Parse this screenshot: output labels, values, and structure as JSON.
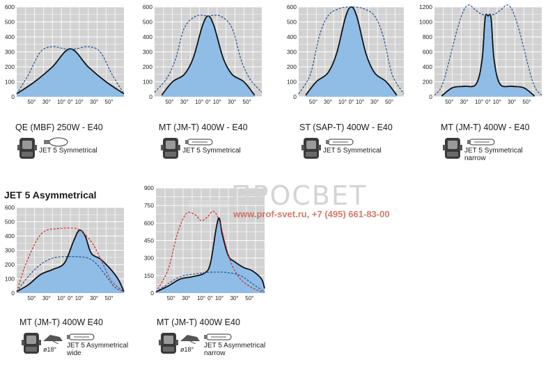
{
  "section_heading": "JET 5 Asymmetrical",
  "watermark": {
    "title": "ПРОСВЕТ",
    "url": "www.prof-svet.ru, +7 (495) 661-83-00"
  },
  "colors": {
    "plot_bg": "#d2d2d2",
    "grid": "#ffffff",
    "fill": "#8fbde6",
    "solid": "#111111",
    "blue_dash": "#1d4f8f",
    "red_dash": "#cc2a2a"
  },
  "chart_data": [
    {
      "type": "line",
      "caption": "QE (MBF) 250W - E40",
      "lamp_label": "JET 5 Symmetrical",
      "lamp_icon": "ellipsoidal-lamp-icon",
      "fixture_icon": "fixture-front-icon",
      "ylim": [
        0,
        600
      ],
      "yticks": [
        0,
        100,
        200,
        300,
        400,
        500,
        600
      ],
      "xticks": [
        "50°",
        "30°",
        "10°",
        "0°",
        "10°",
        "30°",
        "50°"
      ],
      "series": [
        {
          "style": "solid-fill",
          "x": [
            -90,
            -60,
            -30,
            0,
            30,
            60,
            90
          ],
          "y": [
            20,
            100,
            200,
            320,
            200,
            100,
            20
          ]
        },
        {
          "style": "blue-dash",
          "x": [
            -90,
            -70,
            -50,
            -30,
            -10,
            0,
            10,
            30,
            50,
            70,
            90
          ],
          "y": [
            20,
            150,
            300,
            335,
            320,
            320,
            320,
            335,
            300,
            150,
            20
          ]
        }
      ]
    },
    {
      "type": "line",
      "caption": "MT (JM-T) 400W - E40",
      "lamp_label": "JET 5 Symmetrical",
      "lamp_icon": "tubular-lamp-icon",
      "fixture_icon": "fixture-front-icon",
      "ylim": [
        0,
        600
      ],
      "yticks": [
        0,
        100,
        200,
        300,
        400,
        500,
        600
      ],
      "xticks": [
        "50°",
        "30°",
        "10°",
        "0°",
        "10°",
        "30°",
        "50°"
      ],
      "series": [
        {
          "style": "solid-fill",
          "x": [
            -78,
            -60,
            -40,
            -25,
            -10,
            0,
            10,
            25,
            40,
            60,
            78
          ],
          "y": [
            10,
            100,
            150,
            260,
            470,
            540,
            470,
            260,
            150,
            100,
            10
          ]
        },
        {
          "style": "blue-dash",
          "x": [
            -90,
            -70,
            -55,
            -40,
            -20,
            0,
            20,
            40,
            55,
            70,
            90
          ],
          "y": [
            30,
            120,
            250,
            460,
            540,
            540,
            540,
            460,
            250,
            120,
            30
          ]
        }
      ]
    },
    {
      "type": "line",
      "caption": "ST (SAP-T) 400W - E40",
      "lamp_label": "JET 5 Symmetrical",
      "lamp_icon": "tubular-lamp-icon",
      "fixture_icon": "fixture-front-icon",
      "ylim": [
        0,
        600
      ],
      "yticks": [
        0,
        100,
        200,
        300,
        400,
        500,
        600
      ],
      "xticks": [
        "50°",
        "30°",
        "10°",
        "0°",
        "10°",
        "30°",
        "50°"
      ],
      "series": [
        {
          "style": "solid-fill",
          "x": [
            -78,
            -60,
            -40,
            -25,
            -10,
            0,
            10,
            25,
            40,
            60,
            78
          ],
          "y": [
            10,
            100,
            160,
            290,
            530,
            600,
            530,
            290,
            160,
            100,
            10
          ]
        },
        {
          "style": "blue-dash",
          "x": [
            -90,
            -70,
            -55,
            -40,
            -20,
            0,
            20,
            40,
            55,
            70,
            90
          ],
          "y": [
            20,
            150,
            400,
            540,
            590,
            600,
            590,
            540,
            400,
            150,
            20
          ]
        }
      ]
    },
    {
      "type": "line",
      "caption": "MT (JM-T) 400W - E40",
      "lamp_label": "JET 5 Symmetrical\nnarrow",
      "lamp_icon": "tubular-lamp-icon",
      "fixture_icon": "fixture-front-icon",
      "ylim": [
        0,
        1200
      ],
      "yticks": [
        0,
        200,
        400,
        600,
        800,
        1000,
        1200
      ],
      "xticks": [
        "50°",
        "30°",
        "10°",
        "0°",
        "10°",
        "30°",
        "50°"
      ],
      "series": [
        {
          "style": "solid-fill",
          "x": [
            -78,
            -60,
            -40,
            -20,
            -10,
            -5,
            0,
            5,
            10,
            20,
            40,
            60,
            78
          ],
          "y": [
            10,
            120,
            140,
            170,
            500,
            1050,
            1080,
            1050,
            500,
            170,
            140,
            120,
            10
          ]
        },
        {
          "style": "blue-dash",
          "x": [
            -90,
            -75,
            -50,
            -35,
            -20,
            -10,
            0,
            10,
            20,
            35,
            50,
            75,
            90
          ],
          "y": [
            20,
            200,
            950,
            1220,
            1150,
            1100,
            1100,
            1100,
            1150,
            1220,
            950,
            200,
            20
          ]
        }
      ]
    },
    {
      "type": "line",
      "caption": "MT (JM-T) 400W E40",
      "lamp_label": "JET 5 Asymmetrical\nwide",
      "lamp_icon": "tubular-lamp-icon",
      "fixture_icon": "fixture-front-icon",
      "tilt_label": "ø18°",
      "ylim": [
        0,
        600
      ],
      "yticks": [
        0,
        100,
        200,
        300,
        400,
        500,
        600
      ],
      "xticks": [
        "50°",
        "30°",
        "10°",
        "0°",
        "10°",
        "30°",
        "50°"
      ],
      "series": [
        {
          "style": "solid-fill",
          "x": [
            -90,
            -70,
            -50,
            -30,
            -10,
            5,
            15,
            25,
            35,
            50,
            65,
            80,
            90
          ],
          "y": [
            10,
            60,
            130,
            165,
            210,
            360,
            440,
            400,
            280,
            240,
            180,
            100,
            10
          ]
        },
        {
          "style": "red-dash",
          "x": [
            -90,
            -75,
            -55,
            -40,
            -25,
            -10,
            5,
            15,
            25,
            40,
            55,
            70,
            90
          ],
          "y": [
            10,
            200,
            380,
            440,
            450,
            455,
            455,
            445,
            410,
            330,
            200,
            80,
            10
          ]
        },
        {
          "style": "blue-dash",
          "x": [
            -90,
            -70,
            -50,
            -30,
            -10,
            10,
            30,
            45,
            60,
            75,
            90
          ],
          "y": [
            10,
            120,
            200,
            245,
            255,
            255,
            245,
            200,
            120,
            40,
            10
          ]
        }
      ]
    },
    {
      "type": "line",
      "caption": "MT (JM-T) 400W E40",
      "lamp_label": "JET 5 Asymmetrical\nnarrow",
      "lamp_icon": "tubular-lamp-icon",
      "fixture_icon": "fixture-front-icon",
      "tilt_label": "ø18°",
      "ylim": [
        0,
        900
      ],
      "yticks": [
        0,
        150,
        300,
        450,
        600,
        750,
        900
      ],
      "xticks": [
        "50°",
        "30°",
        "10°",
        "0°",
        "10°",
        "30°",
        "50°"
      ],
      "series": [
        {
          "style": "solid-fill",
          "x": [
            -90,
            -70,
            -50,
            -30,
            -10,
            0,
            10,
            15,
            20,
            30,
            40,
            55,
            70,
            85,
            90
          ],
          "y": [
            10,
            60,
            120,
            140,
            170,
            250,
            560,
            640,
            500,
            320,
            270,
            220,
            190,
            120,
            40
          ]
        },
        {
          "style": "red-dash",
          "x": [
            -90,
            -70,
            -55,
            -40,
            -25,
            -15,
            -5,
            5,
            15,
            25,
            35,
            50,
            65,
            80,
            90
          ],
          "y": [
            10,
            200,
            500,
            680,
            670,
            620,
            650,
            700,
            620,
            420,
            250,
            120,
            60,
            20,
            10
          ]
        },
        {
          "style": "blue-dash",
          "x": [
            -90,
            -70,
            -50,
            -30,
            -10,
            10,
            30,
            50,
            70,
            90
          ],
          "y": [
            10,
            80,
            140,
            160,
            175,
            180,
            175,
            150,
            80,
            10
          ]
        }
      ]
    }
  ]
}
